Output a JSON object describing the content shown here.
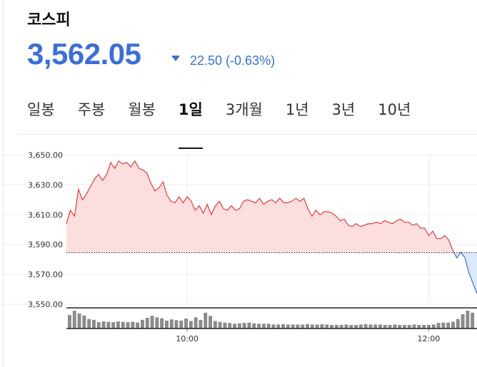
{
  "stock": {
    "name": "코스피",
    "price": "3,562.05",
    "change": "22.50 (-0.63%)",
    "direction": "down"
  },
  "tabs": [
    "일봉",
    "주봉",
    "월봉",
    "1일",
    "3개월",
    "1년",
    "3년",
    "10년"
  ],
  "active_tab": "1일",
  "colors": {
    "up": "#e03c3c",
    "down": "#3b6fd6",
    "up_fill": "#fddede",
    "down_fill": "#dbe9fb",
    "volume": "#8a8a8a"
  },
  "chart_data": {
    "type": "line",
    "ylim": [
      3550,
      3655
    ],
    "yticks": [
      "3,650.00",
      "3,630.00",
      "3,610.00",
      "3,590.00",
      "3,570.00",
      "3,550.00"
    ],
    "ytick_values": [
      3650,
      3630,
      3610,
      3590,
      3570,
      3550
    ],
    "xticks": [
      "10:00",
      "12:00"
    ],
    "xtick_values": [
      60,
      180
    ],
    "xlim": [
      0,
      204
    ],
    "baseline": 3584.55,
    "grid": true,
    "series": [
      {
        "x": [
          0,
          2,
          4,
          6,
          8,
          10,
          12,
          14,
          16,
          18,
          20,
          22,
          24,
          26,
          28,
          30,
          32,
          34,
          36,
          38,
          40,
          42,
          44,
          46,
          48,
          50,
          52,
          54,
          56,
          58,
          60,
          62,
          64,
          66,
          68,
          70,
          72,
          74,
          76,
          78,
          80,
          82,
          84,
          86,
          88,
          90,
          92,
          94,
          96,
          98,
          100,
          102,
          104,
          106,
          108,
          110,
          112,
          114,
          116,
          118,
          120,
          122,
          124,
          126,
          128,
          130,
          132,
          134,
          136,
          138,
          140,
          142,
          144,
          146,
          148,
          150,
          152,
          154,
          156,
          158,
          160,
          162,
          164,
          166,
          168,
          170,
          172,
          174,
          176,
          178,
          180,
          182,
          184,
          186,
          188,
          190,
          192,
          194,
          196,
          198,
          200,
          202,
          204
        ],
        "values": [
          3604,
          3613,
          3609,
          3627,
          3620,
          3624,
          3629,
          3634,
          3637,
          3633,
          3637,
          3645,
          3641,
          3646,
          3644,
          3645,
          3642,
          3646,
          3641,
          3640,
          3638,
          3631,
          3626,
          3628,
          3632,
          3623,
          3619,
          3618,
          3622,
          3618,
          3622,
          3619,
          3613,
          3616,
          3611,
          3617,
          3610,
          3616,
          3619,
          3614,
          3613,
          3616,
          3613,
          3614,
          3619,
          3620,
          3619,
          3618,
          3621,
          3617,
          3619,
          3620,
          3618,
          3621,
          3618,
          3618,
          3619,
          3621,
          3619,
          3621,
          3614,
          3609,
          3613,
          3610,
          3612,
          3612,
          3611,
          3609,
          3606,
          3607,
          3603,
          3602,
          3604,
          3602,
          3603,
          3604,
          3604,
          3605,
          3604,
          3606,
          3605,
          3604,
          3606,
          3607,
          3605,
          3605,
          3603,
          3604,
          3601,
          3601,
          3596,
          3599,
          3594,
          3594,
          3596,
          3593,
          3586,
          3581,
          3585,
          3581,
          3571,
          3564,
          3557
        ]
      }
    ],
    "volume": [
      34,
      45,
      38,
      33,
      24,
      22,
      16,
      18,
      17,
      16,
      18,
      17,
      16,
      17,
      15,
      22,
      27,
      32,
      28,
      26,
      20,
      23,
      21,
      20,
      25,
      19,
      28,
      22,
      40,
      32,
      19,
      17,
      15,
      14,
      12,
      13,
      14,
      15,
      13,
      12,
      12,
      12,
      10,
      10,
      11,
      10,
      10,
      10,
      10,
      11,
      10,
      10,
      11,
      10,
      9,
      9,
      9,
      10,
      9,
      9,
      10,
      11,
      10,
      10,
      10,
      9,
      9,
      10,
      9,
      9,
      9,
      10,
      9,
      9,
      9,
      10,
      14,
      15,
      15,
      17,
      24,
      36,
      45,
      40
    ]
  }
}
